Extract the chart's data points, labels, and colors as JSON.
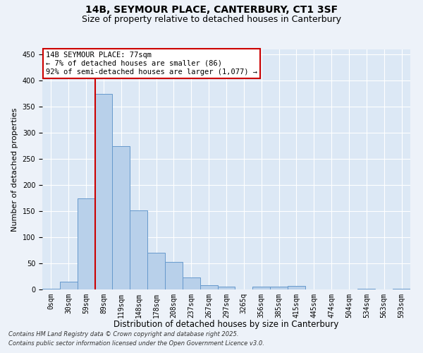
{
  "title": "14B, SEYMOUR PLACE, CANTERBURY, CT1 3SF",
  "subtitle": "Size of property relative to detached houses in Canterbury",
  "xlabel": "Distribution of detached houses by size in Canterbury",
  "ylabel": "Number of detached properties",
  "bar_labels": [
    "0sqm",
    "30sqm",
    "59sqm",
    "89sqm",
    "119sqm",
    "148sqm",
    "178sqm",
    "208sqm",
    "237sqm",
    "267sqm",
    "297sqm",
    "3265q",
    "356sqm",
    "385sqm",
    "415sqm",
    "445sqm",
    "474sqm",
    "504sqm",
    "534sqm",
    "563sqm",
    "593sqm"
  ],
  "bar_values": [
    2,
    15,
    175,
    375,
    275,
    152,
    70,
    53,
    23,
    8,
    6,
    0,
    6,
    5,
    7,
    0,
    0,
    0,
    1,
    0,
    1
  ],
  "bar_color": "#b8d0ea",
  "bar_edge_color": "#6699cc",
  "vline_x": 2.5,
  "vline_color": "#cc0000",
  "ylim": [
    0,
    460
  ],
  "yticks": [
    0,
    50,
    100,
    150,
    200,
    250,
    300,
    350,
    400,
    450
  ],
  "annotation_text": "14B SEYMOUR PLACE: 77sqm\n← 7% of detached houses are smaller (86)\n92% of semi-detached houses are larger (1,077) →",
  "annotation_box_color": "#ffffff",
  "annotation_box_edge": "#cc0000",
  "footer_line1": "Contains HM Land Registry data © Crown copyright and database right 2025.",
  "footer_line2": "Contains public sector information licensed under the Open Government Licence v3.0.",
  "bg_color": "#edf2f9",
  "plot_bg_color": "#dce8f5",
  "grid_color": "#ffffff",
  "title_fontsize": 10,
  "subtitle_fontsize": 9,
  "tick_fontsize": 7,
  "ylabel_fontsize": 8,
  "xlabel_fontsize": 8.5,
  "annotation_fontsize": 7.5,
  "footer_fontsize": 6
}
